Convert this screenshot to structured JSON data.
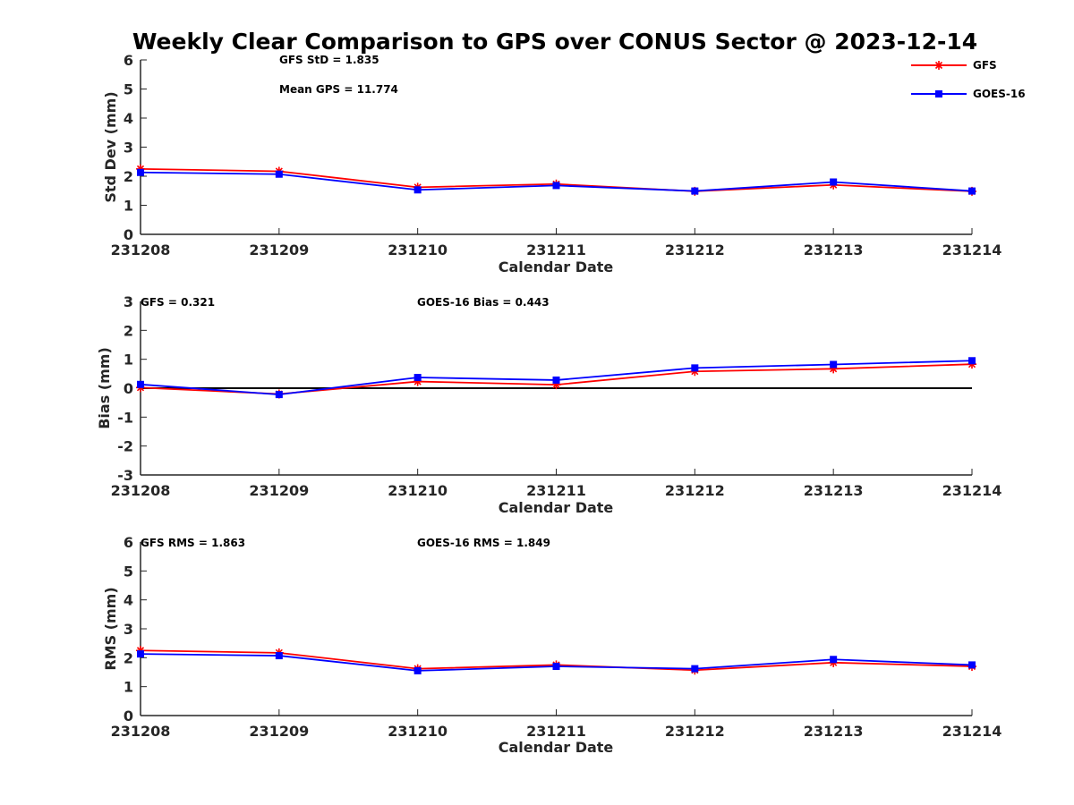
{
  "title": "Weekly Clear Comparison to GPS over CONUS Sector @ 2023-12-14",
  "legend": [
    {
      "name": "GFS",
      "color": "#ff0000",
      "marker": "asterisk"
    },
    {
      "name": "GOES-16",
      "color": "#0000ff",
      "marker": "square"
    }
  ],
  "chart_data": [
    {
      "type": "line",
      "categories": [
        "231208",
        "231209",
        "231210",
        "231211",
        "231212",
        "231213",
        "231214"
      ],
      "xlabel": "Calendar Date",
      "ylabel": "Std Dev (mm)",
      "ylim": [
        0,
        6
      ],
      "yticks": [
        "0",
        "1",
        "2",
        "3",
        "4",
        "5",
        "6"
      ],
      "annotations": [
        "GFS StD = 1.835",
        "Mean GPS = 11.774"
      ],
      "series": [
        {
          "name": "GFS",
          "values": [
            2.25,
            2.17,
            1.62,
            1.73,
            1.48,
            1.7,
            1.48
          ]
        },
        {
          "name": "GOES-16",
          "values": [
            2.13,
            2.07,
            1.53,
            1.68,
            1.49,
            1.8,
            1.49
          ]
        }
      ]
    },
    {
      "type": "line",
      "categories": [
        "231208",
        "231209",
        "231210",
        "231211",
        "231212",
        "231213",
        "231214"
      ],
      "xlabel": "Calendar Date",
      "ylabel": "Bias (mm)",
      "ylim": [
        -3,
        3
      ],
      "yticks": [
        "-3",
        "-2",
        "-1",
        "0",
        "1",
        "2",
        "3"
      ],
      "reference_line": 0,
      "annotations": [
        "GFS = 0.321",
        "GOES-16 Bias  = 0.443"
      ],
      "series": [
        {
          "name": "GFS",
          "values": [
            0.02,
            -0.2,
            0.23,
            0.12,
            0.58,
            0.67,
            0.83
          ]
        },
        {
          "name": "GOES-16",
          "values": [
            0.13,
            -0.22,
            0.37,
            0.28,
            0.7,
            0.82,
            0.95
          ]
        }
      ]
    },
    {
      "type": "line",
      "categories": [
        "231208",
        "231209",
        "231210",
        "231211",
        "231212",
        "231213",
        "231214"
      ],
      "xlabel": "Calendar Date",
      "ylabel": "RMS (mm)",
      "ylim": [
        0,
        6
      ],
      "yticks": [
        "0",
        "1",
        "2",
        "3",
        "4",
        "5",
        "6"
      ],
      "annotations": [
        "GFS RMS = 1.863",
        "GOES-16 RMS = 1.849"
      ],
      "series": [
        {
          "name": "GFS",
          "values": [
            2.25,
            2.17,
            1.62,
            1.75,
            1.57,
            1.83,
            1.7
          ]
        },
        {
          "name": "GOES-16",
          "values": [
            2.13,
            2.07,
            1.55,
            1.7,
            1.62,
            1.94,
            1.75
          ]
        }
      ]
    }
  ]
}
